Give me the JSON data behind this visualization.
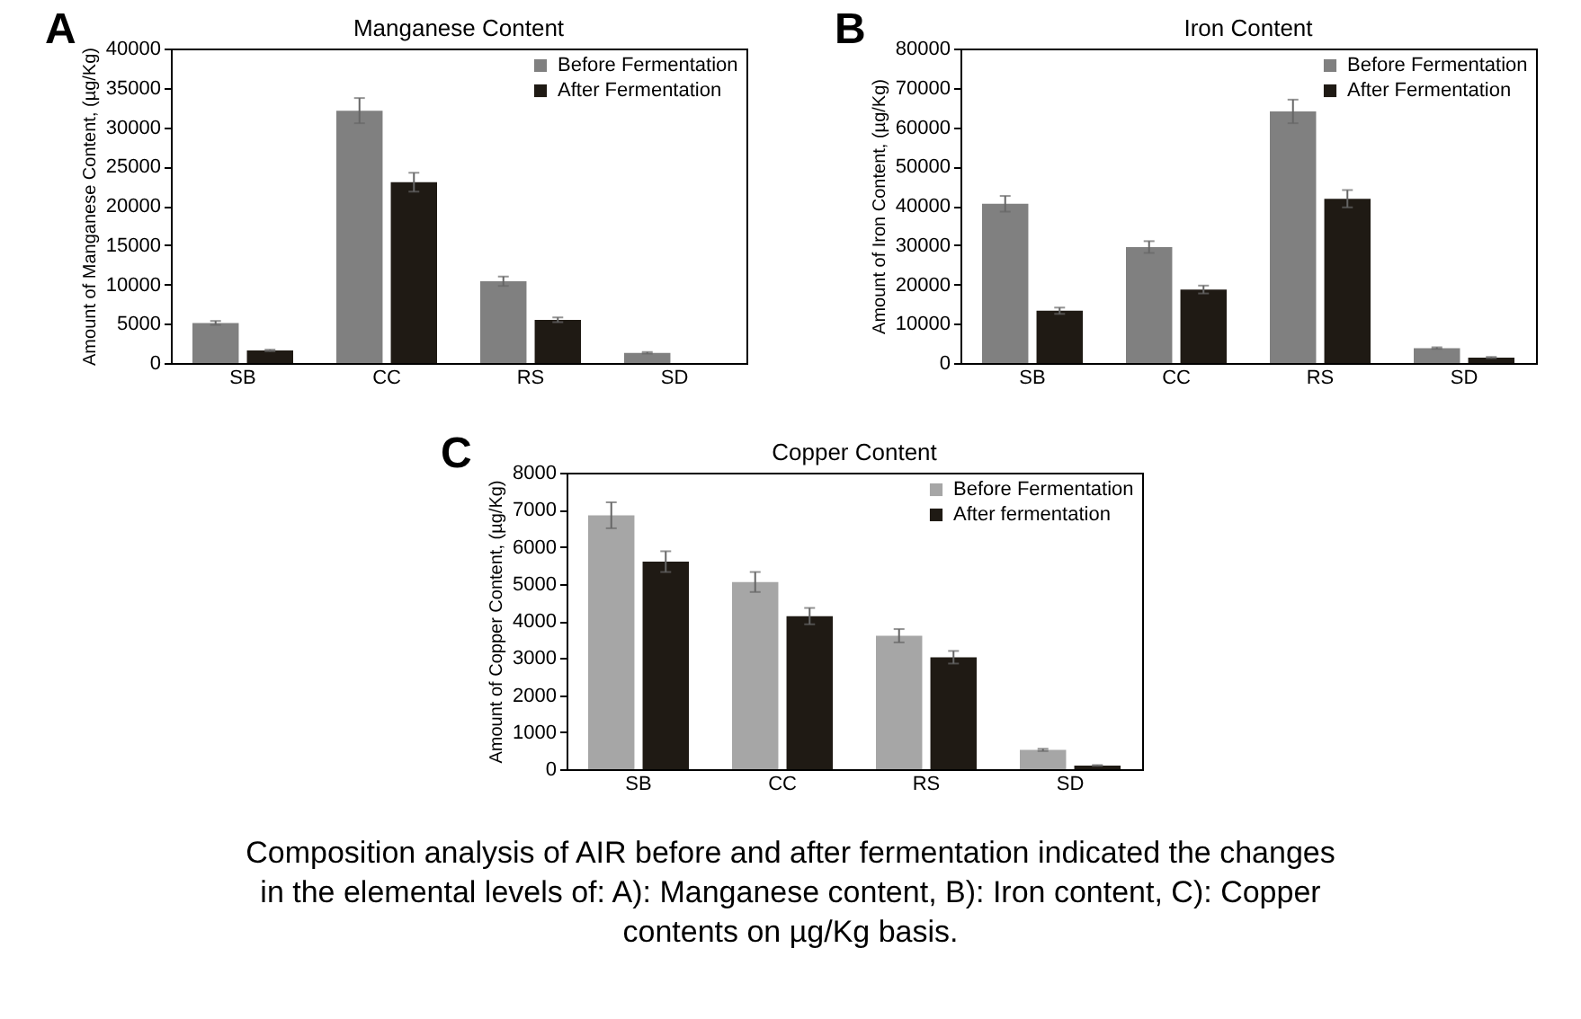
{
  "chart_data": [
    {
      "type": "bar",
      "title": "Manganese Content",
      "ylabel": "Amount of Manganese Content, (µg/Kg)",
      "annotations": [
        "A",
        "Composition analysis of AIR before and after fermentation indicated the changes in the elemental levels of: A): Manganese content, B): Iron content, C): Copper contents on µg/Kg basis."
      ],
      "categories": [
        "SB",
        "CC",
        "RS",
        "SD"
      ],
      "series": [
        {
          "name": "Before Fermentation",
          "color": "#808080",
          "values": [
            5100,
            32100,
            10400,
            1300
          ],
          "errors": [
            250,
            1600,
            600,
            100
          ]
        },
        {
          "name": "After Fermentation",
          "color": "#1f1a14",
          "values": [
            1600,
            23000,
            5500,
            0
          ],
          "errors": [
            100,
            1200,
            300,
            null
          ]
        }
      ],
      "ylim": [
        0,
        40000
      ],
      "yticks": [
        0,
        5000,
        10000,
        15000,
        20000,
        25000,
        30000,
        35000,
        40000
      ],
      "grid": false,
      "legend": "top right"
    },
    {
      "type": "bar",
      "title": "Iron Content",
      "ylabel": "Amount of Iron Content, (µg/Kg)",
      "annotations": [
        "B"
      ],
      "categories": [
        "SB",
        "CC",
        "RS",
        "SD"
      ],
      "series": [
        {
          "name": "Before Fermentation",
          "color": "#808080",
          "values": [
            40500,
            29500,
            64000,
            3800
          ],
          "errors": [
            2000,
            1500,
            3000,
            200
          ]
        },
        {
          "name": "After Fermentation",
          "color": "#1f1a14",
          "values": [
            13300,
            18700,
            41800,
            1400
          ],
          "errors": [
            800,
            1000,
            2200,
            150
          ]
        }
      ],
      "ylim": [
        0,
        80000
      ],
      "yticks": [
        0,
        10000,
        20000,
        30000,
        40000,
        50000,
        60000,
        70000,
        80000
      ],
      "grid": false,
      "legend": "top right"
    },
    {
      "type": "bar",
      "title": "Copper Content",
      "ylabel": "Amount of Copper Content, (µg/Kg)",
      "annotations": [
        "C"
      ],
      "categories": [
        "SB",
        "CC",
        "RS",
        "SD"
      ],
      "series": [
        {
          "name": "Before Fermentation",
          "color": "#a6a6a6",
          "values": [
            6850,
            5050,
            3600,
            520
          ],
          "errors": [
            350,
            270,
            180,
            30
          ]
        },
        {
          "name": "After fermentation",
          "color": "#1f1a14",
          "values": [
            5600,
            4130,
            3020,
            100
          ],
          "errors": [
            280,
            220,
            170,
            10
          ]
        }
      ],
      "ylim": [
        0,
        8000
      ],
      "yticks": [
        0,
        1000,
        2000,
        3000,
        4000,
        5000,
        6000,
        7000,
        8000
      ],
      "grid": false,
      "legend": "top right"
    }
  ]
}
